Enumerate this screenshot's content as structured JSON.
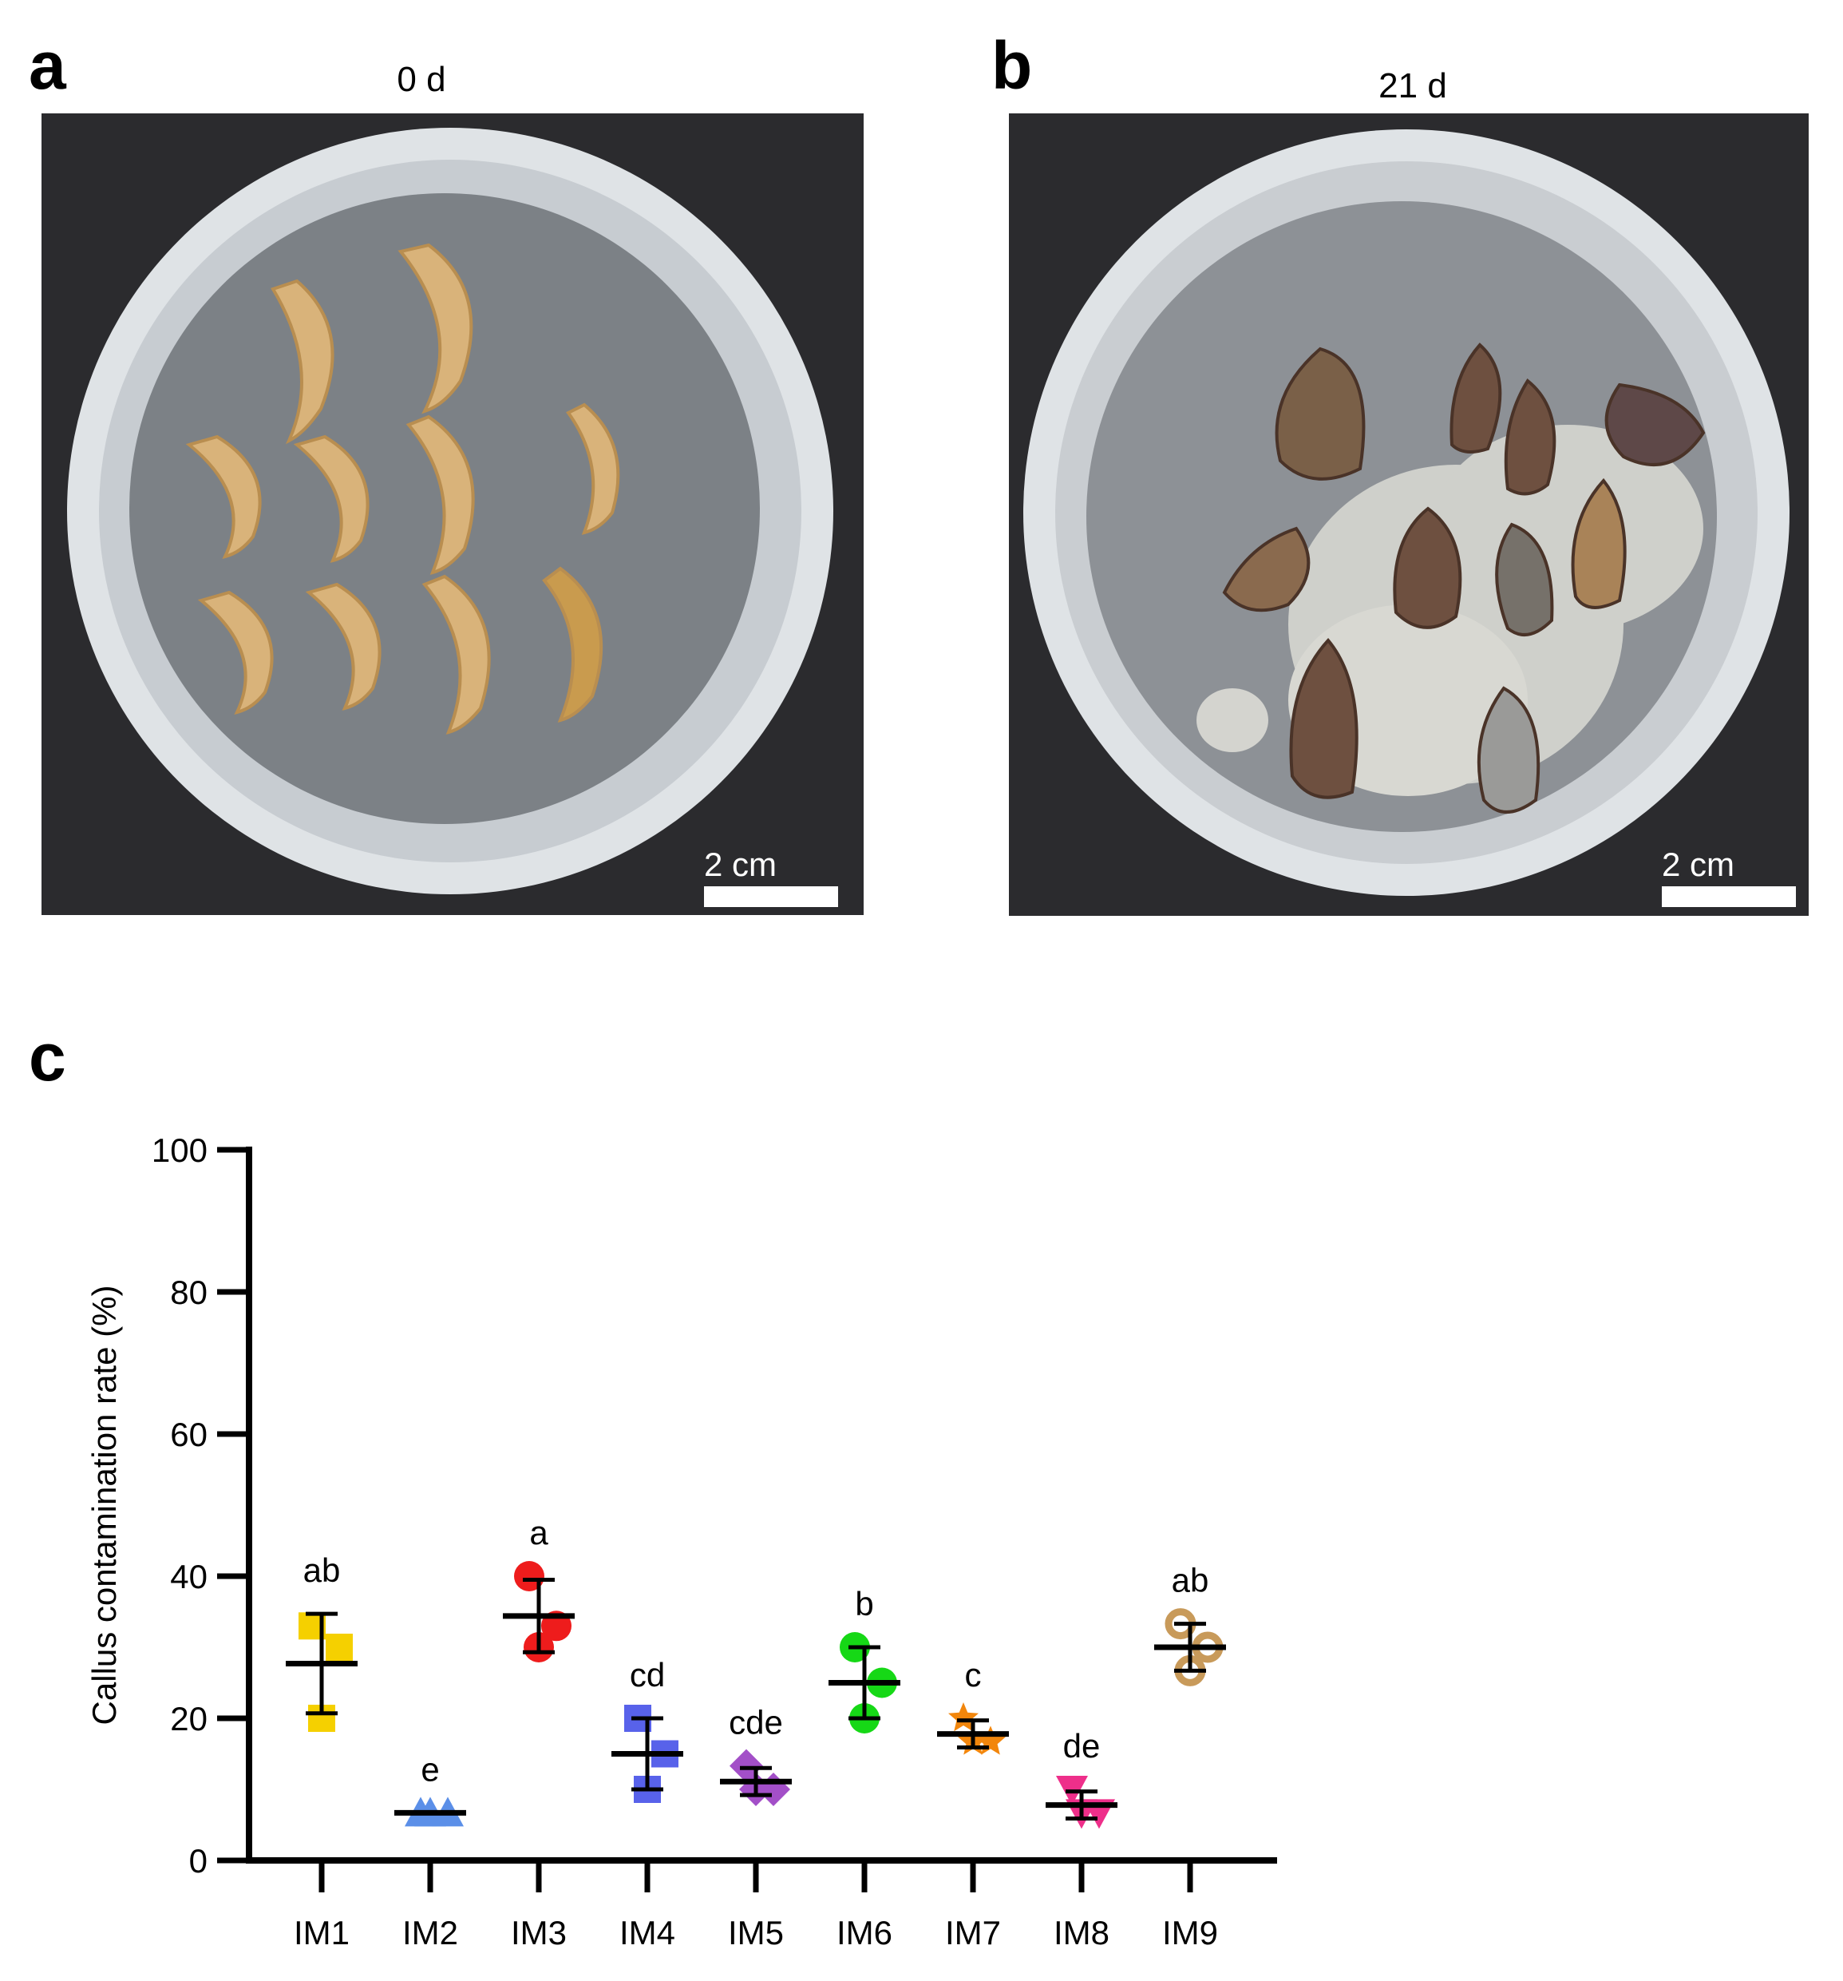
{
  "panels": {
    "a": {
      "letter": "a",
      "title": "0 d",
      "scale_label": "2 cm"
    },
    "b": {
      "letter": "b",
      "title": "21 d",
      "scale_label": "2 cm"
    },
    "c": {
      "letter": "c"
    }
  },
  "colors": {
    "background_photo": "#2b2b2e",
    "dish_rim": "#e9ecef",
    "agar": "#7a7f84",
    "explant": "#d9b37a",
    "browned_explant": "#6e5040",
    "mold": "#cfd0cb"
  },
  "chart_data": {
    "type": "scatter",
    "ylabel": "Callus contamination rate (%)",
    "xlabel": "",
    "ylim": [
      0,
      100
    ],
    "yticks": [
      0,
      20,
      40,
      60,
      80,
      100
    ],
    "categories": [
      "IM1",
      "IM2",
      "IM3",
      "IM4",
      "IM5",
      "IM6",
      "IM7",
      "IM8",
      "IM9"
    ],
    "groups": [
      {
        "name": "IM1",
        "color": "#f5d000",
        "marker": "square",
        "points": [
          33,
          30,
          20
        ],
        "mean": 27.7,
        "sd": 7.0,
        "letter": "ab"
      },
      {
        "name": "IM2",
        "color": "#5b8fe8",
        "marker": "triangle-up",
        "points": [
          6.7,
          6.7,
          6.7
        ],
        "mean": 6.7,
        "sd": 0.0,
        "letter": "e"
      },
      {
        "name": "IM3",
        "color": "#ee1c1c",
        "marker": "circle",
        "points": [
          40,
          33,
          30
        ],
        "mean": 34.4,
        "sd": 5.1,
        "letter": "a"
      },
      {
        "name": "IM4",
        "color": "#5862ea",
        "marker": "square",
        "points": [
          20,
          15,
          10
        ],
        "mean": 15.0,
        "sd": 5.0,
        "letter": "cd"
      },
      {
        "name": "IM5",
        "color": "#a34fc8",
        "marker": "diamond",
        "points": [
          13.3,
          10,
          10
        ],
        "mean": 11.1,
        "sd": 1.9,
        "letter": "cde"
      },
      {
        "name": "IM6",
        "color": "#16d816",
        "marker": "circle",
        "points": [
          30,
          25,
          20
        ],
        "mean": 25.0,
        "sd": 5.0,
        "letter": "b"
      },
      {
        "name": "IM7",
        "color": "#f2860c",
        "marker": "star",
        "points": [
          20,
          16.7,
          16.7
        ],
        "mean": 17.8,
        "sd": 1.9,
        "letter": "c"
      },
      {
        "name": "IM8",
        "color": "#ee2f8a",
        "marker": "triangle-down",
        "points": [
          10,
          6.7,
          6.7
        ],
        "mean": 7.8,
        "sd": 1.9,
        "letter": "de"
      },
      {
        "name": "IM9",
        "color": "#c89a5a",
        "marker": "ring",
        "points": [
          33.3,
          30,
          26.7
        ],
        "mean": 30.0,
        "sd": 3.3,
        "letter": "ab"
      }
    ]
  }
}
